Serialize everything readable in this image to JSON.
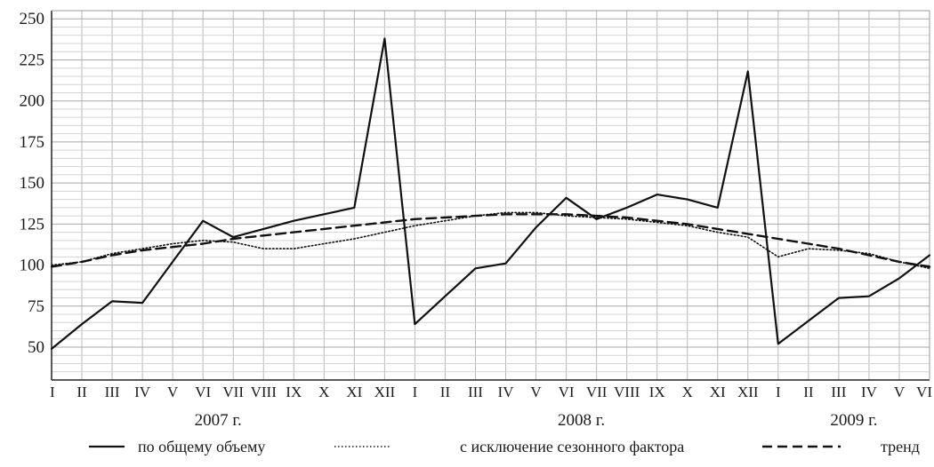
{
  "chart_data": {
    "type": "line",
    "title": "",
    "xlabel": "",
    "ylabel": "",
    "ylim": [
      30,
      255
    ],
    "yticks": [
      50,
      75,
      100,
      125,
      150,
      175,
      200,
      225,
      250
    ],
    "grid": true,
    "legend_position": "bottom",
    "x": [
      "I",
      "II",
      "III",
      "IV",
      "V",
      "VI",
      "VII",
      "VIII",
      "IX",
      "X",
      "XI",
      "XII",
      "I",
      "II",
      "III",
      "IV",
      "V",
      "VI",
      "VII",
      "VIII",
      "IX",
      "X",
      "XI",
      "XII",
      "I",
      "II",
      "III",
      "IV",
      "V",
      "VI"
    ],
    "years": [
      {
        "label": "2007 г.",
        "start": 0,
        "end": 11
      },
      {
        "label": "2008 г.",
        "start": 12,
        "end": 23
      },
      {
        "label": "2009 г.",
        "start": 24,
        "end": 29
      }
    ],
    "series": [
      {
        "name": "по общему объему",
        "style": "solid",
        "values": [
          49,
          64,
          78,
          77,
          102,
          127,
          117,
          122,
          127,
          131,
          135,
          238,
          64,
          81,
          98,
          101,
          123,
          141,
          128,
          135,
          143,
          140,
          135,
          218,
          52,
          66,
          80,
          81,
          92,
          106
        ]
      },
      {
        "name": "с исключение сезонного фактора",
        "style": "dotted",
        "values": [
          100,
          102,
          107,
          110,
          113,
          115,
          114,
          110,
          110,
          113,
          116,
          120,
          124,
          127,
          130,
          132,
          132,
          130,
          129,
          128,
          126,
          124,
          120,
          117,
          105,
          110,
          109,
          107,
          102,
          98
        ]
      },
      {
        "name": "тренд",
        "style": "dashed",
        "values": [
          99,
          102,
          106,
          109,
          111,
          113,
          116,
          118,
          120,
          122,
          124,
          126,
          128,
          129,
          130,
          131,
          131,
          131,
          130,
          129,
          127,
          125,
          122,
          119,
          116,
          113,
          110,
          106,
          102,
          99
        ]
      }
    ]
  }
}
